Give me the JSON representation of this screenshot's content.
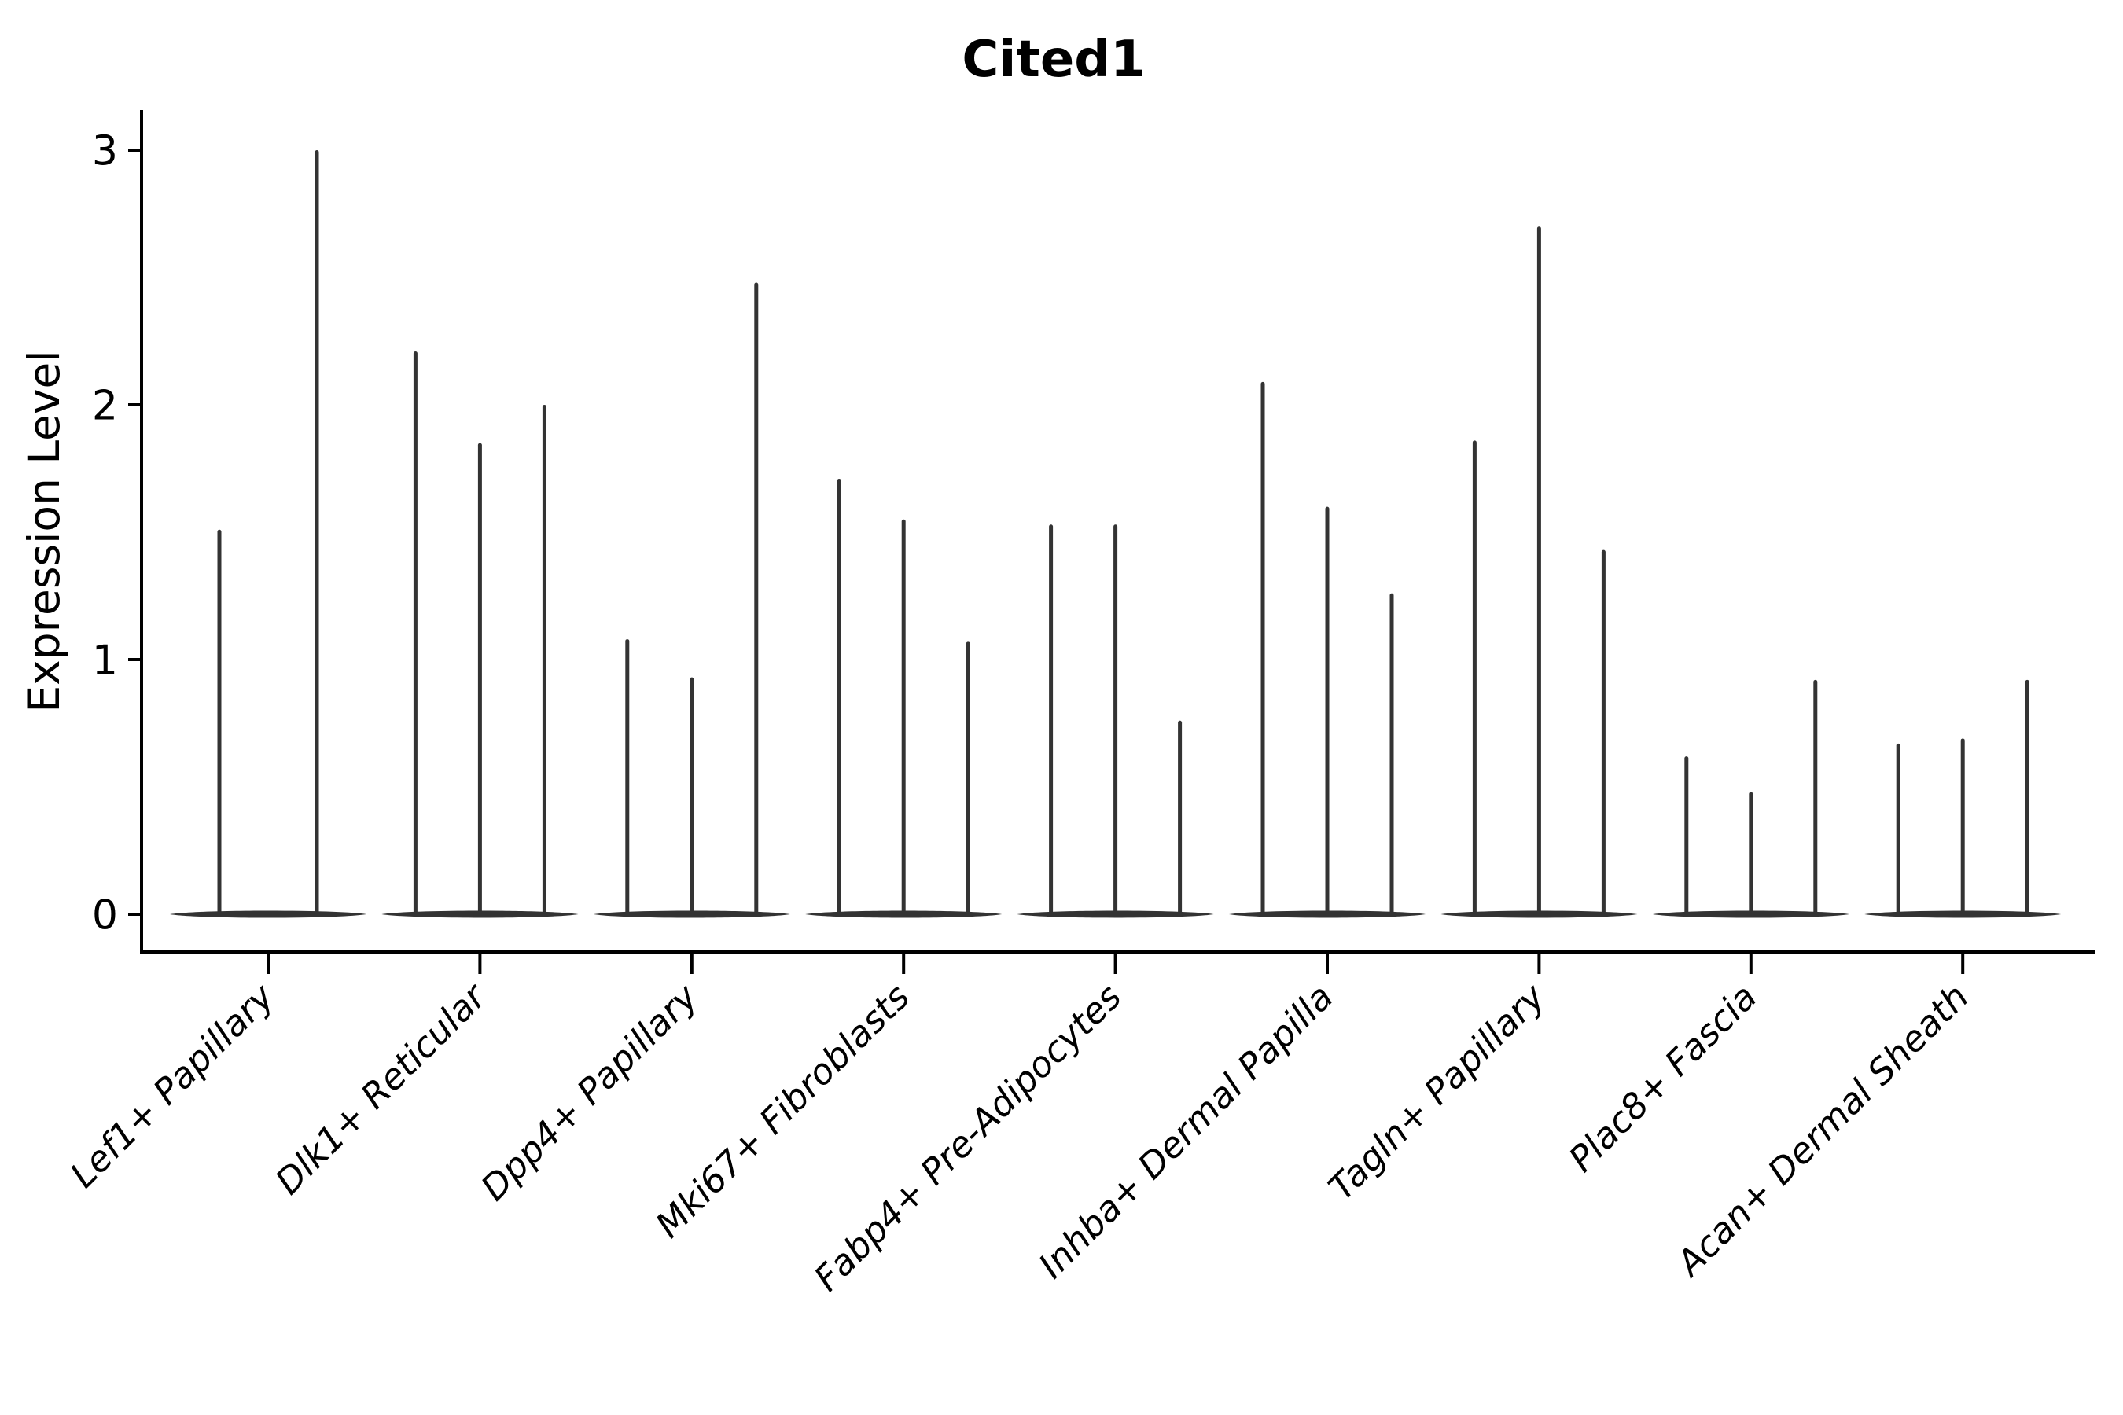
{
  "chart_data": {
    "type": "violin",
    "title": "Cited1",
    "xlabel": "",
    "ylabel": "Expression Level",
    "yticks": [
      0,
      1,
      2,
      3
    ],
    "ylim": [
      0,
      3.05
    ],
    "grid": false,
    "legend": "none",
    "background_color": "#ffffff",
    "violin_color": "#333333",
    "axis_color": "#000000",
    "baseline_value": 0,
    "description": "Narrow violins: dense mass at expression 0 (flat lens on baseline) with a thin spike rising to each violin's maximum expression level",
    "groups": [
      {
        "label": "Lef1+ Papillary",
        "violin_maxima": [
          1.51,
          3.0
        ]
      },
      {
        "label": "Dlk1+ Reticular",
        "violin_maxima": [
          2.21,
          1.85,
          2.0
        ]
      },
      {
        "label": "Dpp4+ Papillary",
        "violin_maxima": [
          1.08,
          0.93,
          2.48
        ]
      },
      {
        "label": "Mki67+ Fibroblasts",
        "violin_maxima": [
          1.71,
          1.55,
          1.07
        ]
      },
      {
        "label": "Fabp4+ Pre-Adipocytes",
        "violin_maxima": [
          1.53,
          1.53,
          0.76
        ]
      },
      {
        "label": "Inhba+ Dermal Papilla",
        "violin_maxima": [
          2.09,
          1.6,
          1.26
        ]
      },
      {
        "label": "Tagln+ Papillary",
        "violin_maxima": [
          1.86,
          2.7,
          1.43
        ]
      },
      {
        "label": "Plac8+ Fascia",
        "violin_maxima": [
          0.62,
          0.48,
          0.92
        ]
      },
      {
        "label": "Acan+ Dermal Sheath",
        "violin_maxima": [
          0.67,
          0.69,
          0.92
        ]
      }
    ]
  }
}
